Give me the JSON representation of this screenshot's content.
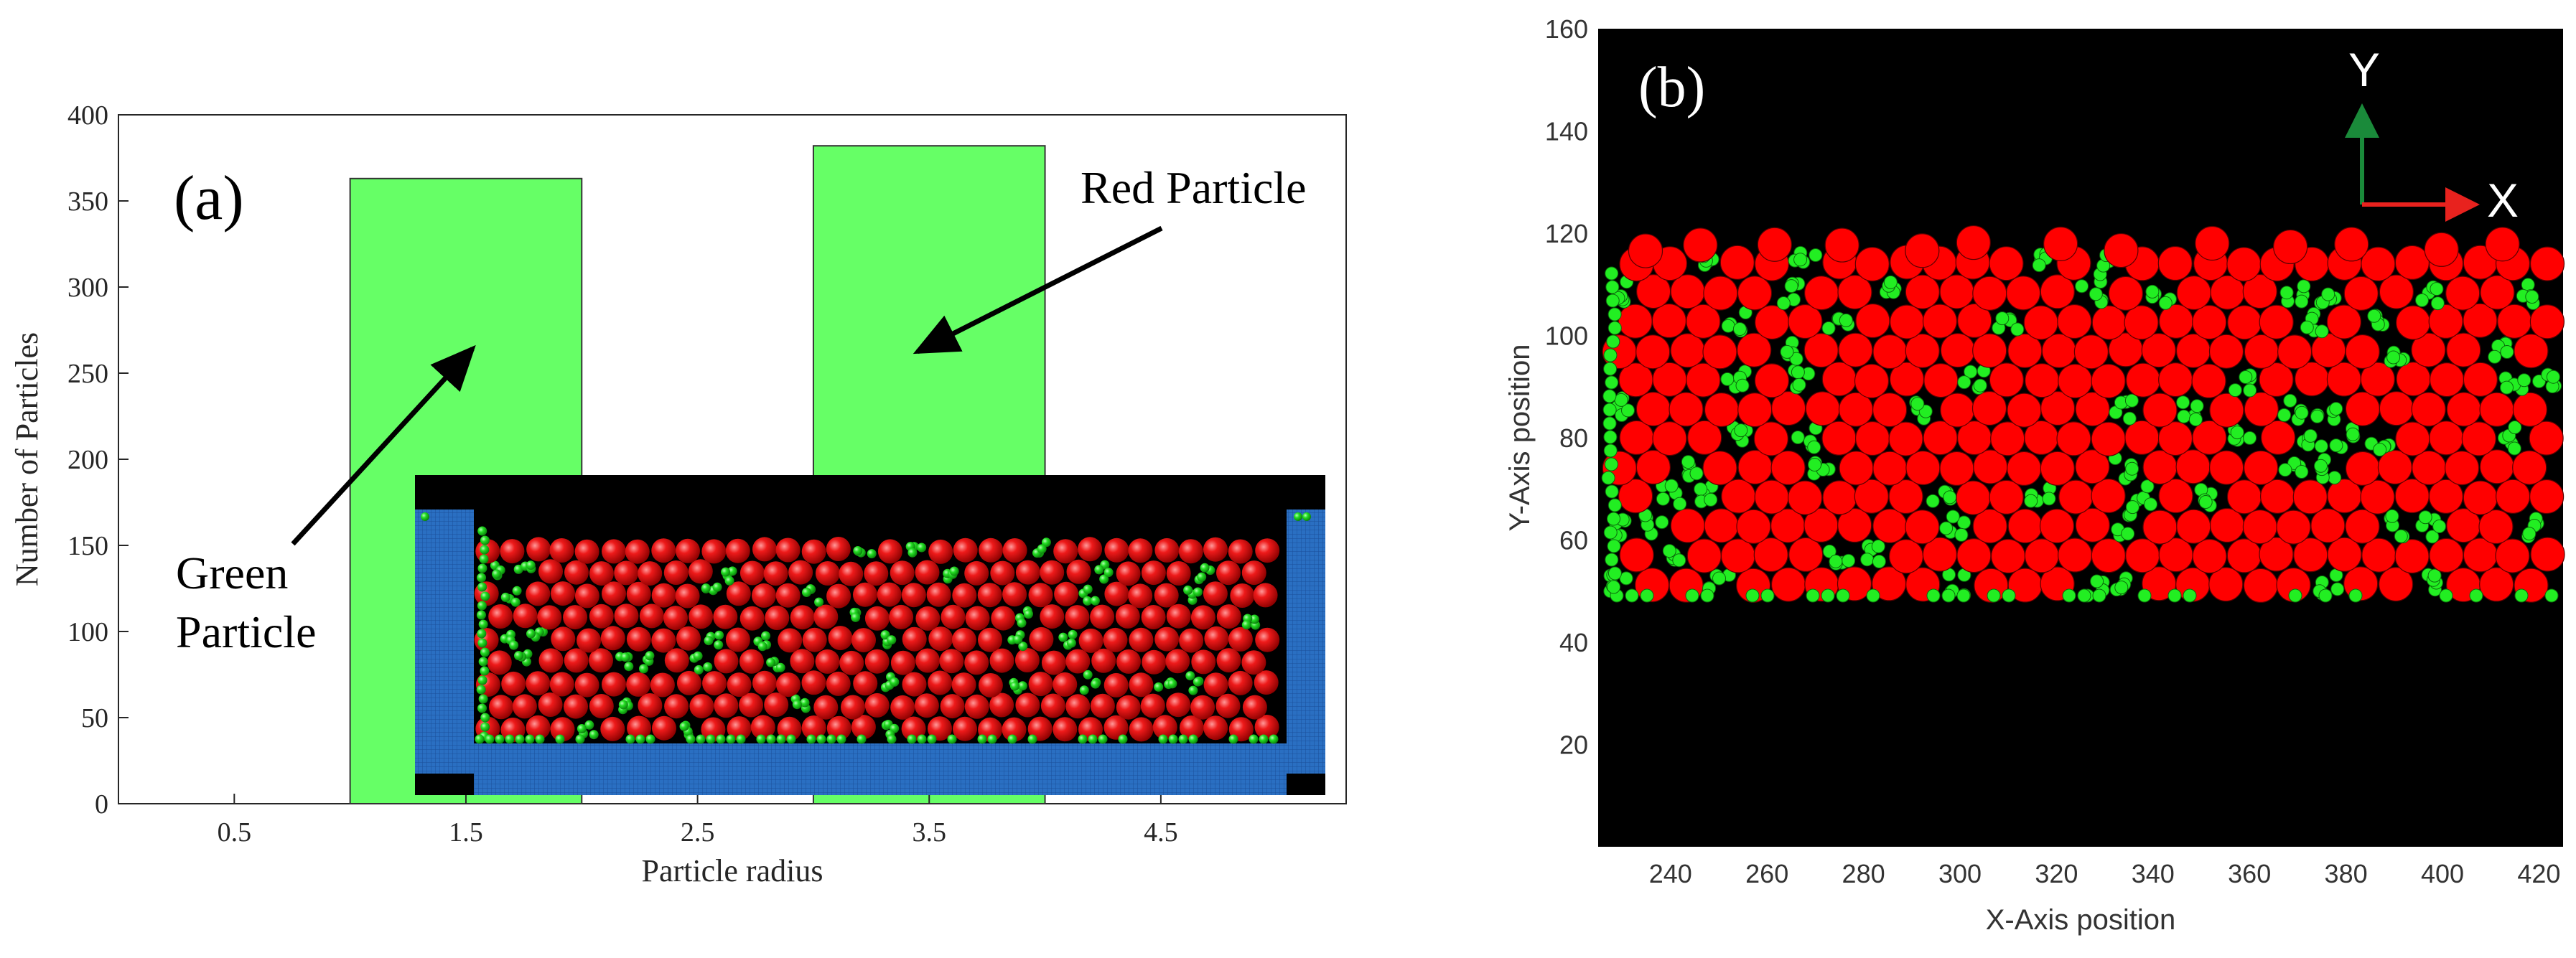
{
  "colors": {
    "bar": "#66ff66",
    "red_particle": "#ff0000",
    "green_particle": "#22ee22",
    "wall": "#2a6fc2",
    "axis_y": "#1a8a3a",
    "axis_x": "#e8221e"
  },
  "chart_data": [
    {
      "id": "a",
      "type": "bar",
      "panel_label": "(a)",
      "xlabel": "Particle radius",
      "ylabel": "Number of Particles",
      "xlim": [
        0,
        5.3
      ],
      "ylim": [
        0,
        400
      ],
      "xticks": [
        0.5,
        1.5,
        2.5,
        3.5,
        4.5
      ],
      "yticks": [
        0,
        50,
        100,
        150,
        200,
        250,
        300,
        350,
        400
      ],
      "bars": [
        {
          "x0": 1.0,
          "x1": 2.0,
          "value": 363
        },
        {
          "x0": 3.0,
          "x1": 4.0,
          "value": 382
        }
      ],
      "annotations": [
        {
          "lines": [
            "Red Particle"
          ]
        },
        {
          "lines": [
            "Green",
            "Particle"
          ]
        }
      ]
    },
    {
      "id": "b",
      "type": "scatter",
      "panel_label": "(b)",
      "xlabel": "X-Axis position",
      "ylabel": "Y-Axis position",
      "xlim": [
        225,
        425
      ],
      "ylim": [
        0,
        160
      ],
      "xticks": [
        240,
        260,
        280,
        300,
        320,
        340,
        360,
        380,
        400,
        420
      ],
      "yticks": [
        20,
        40,
        60,
        80,
        100,
        120,
        140,
        160
      ],
      "bed": {
        "x_min": 225,
        "x_max": 425,
        "y_bottom": 48,
        "y_top": 113
      },
      "axis_labels": {
        "y": "Y",
        "x": "X"
      }
    }
  ]
}
